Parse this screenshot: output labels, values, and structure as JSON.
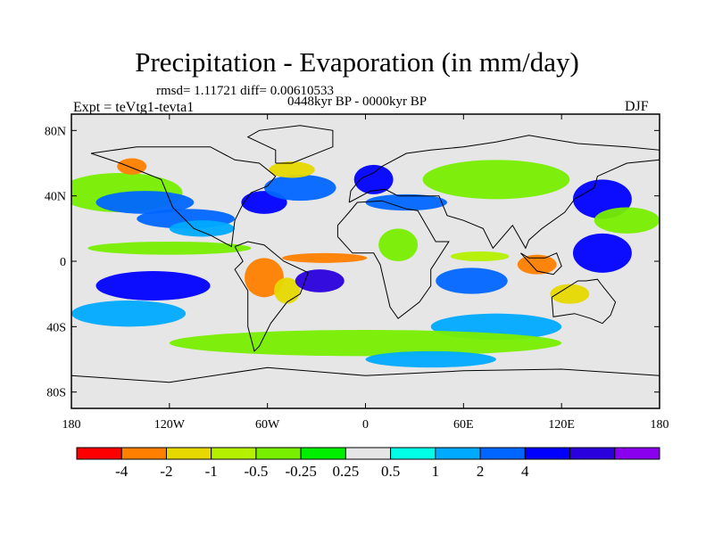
{
  "header": {
    "title": "Precipitation - Evaporation (in mm/day)",
    "stats": "rmsd= 1.11721 diff= 0.00610533",
    "experiment": "Expt = teVtg1-tevta1",
    "period": "0448kyr BP - 0000kyr BP",
    "season": "DJF"
  },
  "chart_data": {
    "type": "heatmap",
    "title": "Precipitation - Evaporation (in mm/day)",
    "projection": "cylindrical equidistant global map",
    "xlim": [
      -180,
      180
    ],
    "ylim": [
      -90,
      90
    ],
    "x_ticks": [
      {
        "value": -180,
        "label": "180"
      },
      {
        "value": -120,
        "label": "120W"
      },
      {
        "value": -60,
        "label": "60W"
      },
      {
        "value": 0,
        "label": "0"
      },
      {
        "value": 60,
        "label": "60E"
      },
      {
        "value": 120,
        "label": "120E"
      },
      {
        "value": 180,
        "label": "180"
      }
    ],
    "y_ticks": [
      {
        "value": 80,
        "label": "80N"
      },
      {
        "value": 40,
        "label": "40N"
      },
      {
        "value": 0,
        "label": "0"
      },
      {
        "value": -40,
        "label": "40S"
      },
      {
        "value": -80,
        "label": "80S"
      }
    ],
    "colorbar": {
      "colors": [
        "#ff0000",
        "#ff8000",
        "#e6d800",
        "#b4f000",
        "#78ee00",
        "#00ee00",
        "#e6e6e6",
        "#00ffe6",
        "#00aaff",
        "#0066ff",
        "#0000ff",
        "#2a00dd",
        "#8a00ee"
      ],
      "labels": [
        "-4",
        "-2",
        "-1",
        "-0.5",
        "-0.25",
        "0.25",
        "0.5",
        "1",
        "2",
        "4"
      ],
      "label_boundary_index": [
        1,
        2,
        3,
        4,
        5,
        6,
        7,
        8,
        9,
        10
      ]
    },
    "regions": [
      {
        "name": "n-pacific-green",
        "lon": -150,
        "lat": 42,
        "rlon": 38,
        "rlat": 12,
        "value": -0.3
      },
      {
        "name": "n-pacific-blue",
        "lon": -135,
        "lat": 36,
        "rlon": 30,
        "rlat": 7,
        "value": 1.2
      },
      {
        "name": "alaska-red",
        "lon": -143,
        "lat": 58,
        "rlon": 9,
        "rlat": 5,
        "value": -3
      },
      {
        "name": "e-pacific-blue",
        "lon": -110,
        "lat": 26,
        "rlon": 30,
        "rlat": 6,
        "value": 1.5
      },
      {
        "name": "w-n-atlantic-blue",
        "lon": -62,
        "lat": 36,
        "rlon": 14,
        "rlat": 7,
        "value": 2.5
      },
      {
        "name": "n-atlantic-blue",
        "lon": -40,
        "lat": 45,
        "rlon": 22,
        "rlat": 8,
        "value": 1
      },
      {
        "name": "n-atlantic-orange",
        "lon": -45,
        "lat": 56,
        "rlon": 14,
        "rlat": 5,
        "value": -1.5
      },
      {
        "name": "europe-blue",
        "lon": 5,
        "lat": 50,
        "rlon": 12,
        "rlat": 9,
        "value": 2
      },
      {
        "name": "mediterranean-blue",
        "lon": 25,
        "lat": 36,
        "rlon": 25,
        "rlat": 5,
        "value": 1
      },
      {
        "name": "asia-green",
        "lon": 80,
        "lat": 50,
        "rlon": 45,
        "rlat": 12,
        "value": -0.3
      },
      {
        "name": "nw-pacific-blue",
        "lon": 145,
        "lat": 38,
        "rlon": 18,
        "rlat": 12,
        "value": 2.5
      },
      {
        "name": "w-pacific-green",
        "lon": 160,
        "lat": 25,
        "rlon": 20,
        "rlat": 8,
        "value": -0.3
      },
      {
        "name": "n-hem-cyan",
        "lon": -100,
        "lat": 20,
        "rlon": 20,
        "rlat": 5,
        "value": 0.6
      },
      {
        "name": "itcz-e-pacific",
        "lon": -120,
        "lat": 8,
        "rlon": 50,
        "rlat": 4,
        "value": -0.4
      },
      {
        "name": "sw-pacific-blue",
        "lon": -130,
        "lat": -15,
        "rlon": 35,
        "rlat": 9,
        "value": 2.5
      },
      {
        "name": "s-pacific-cyan",
        "lon": -145,
        "lat": -32,
        "rlon": 35,
        "rlat": 8,
        "value": 0.6
      },
      {
        "name": "amazon-red",
        "lon": -62,
        "lat": -10,
        "rlon": 12,
        "rlat": 12,
        "value": -3
      },
      {
        "name": "brazil-orange",
        "lon": -48,
        "lat": -18,
        "rlon": 8,
        "rlat": 8,
        "value": -1.5
      },
      {
        "name": "s-atlantic-purple",
        "lon": -28,
        "lat": -12,
        "rlon": 15,
        "rlat": 7,
        "value": 5
      },
      {
        "name": "equatorial-atlantic-red",
        "lon": -25,
        "lat": 2,
        "rlon": 26,
        "rlat": 3,
        "value": -3
      },
      {
        "name": "africa-green",
        "lon": 20,
        "lat": 10,
        "rlon": 12,
        "rlat": 10,
        "value": -0.3
      },
      {
        "name": "indian-ocean-blue",
        "lon": 65,
        "lat": -12,
        "rlon": 22,
        "rlat": 8,
        "value": 1.5
      },
      {
        "name": "indian-ocean-orange",
        "lon": 70,
        "lat": 3,
        "rlon": 18,
        "rlat": 3,
        "value": -1
      },
      {
        "name": "maritime-red",
        "lon": 105,
        "lat": -2,
        "rlon": 12,
        "rlat": 6,
        "value": -3
      },
      {
        "name": "w-pacific-deepblue",
        "lon": 145,
        "lat": 5,
        "rlon": 18,
        "rlat": 12,
        "value": 3
      },
      {
        "name": "australia-orange",
        "lon": 125,
        "lat": -20,
        "rlon": 12,
        "rlat": 6,
        "value": -1.5
      },
      {
        "name": "s-indian-cyan",
        "lon": 80,
        "lat": -40,
        "rlon": 40,
        "rlat": 8,
        "value": 0.6
      },
      {
        "name": "southern-ocean-green",
        "lon": 0,
        "lat": -50,
        "rlon": 120,
        "rlat": 8,
        "value": -0.3
      },
      {
        "name": "southern-ocean-cyan",
        "lon": 40,
        "lat": -60,
        "rlon": 40,
        "rlat": 5,
        "value": 0.6
      }
    ]
  }
}
